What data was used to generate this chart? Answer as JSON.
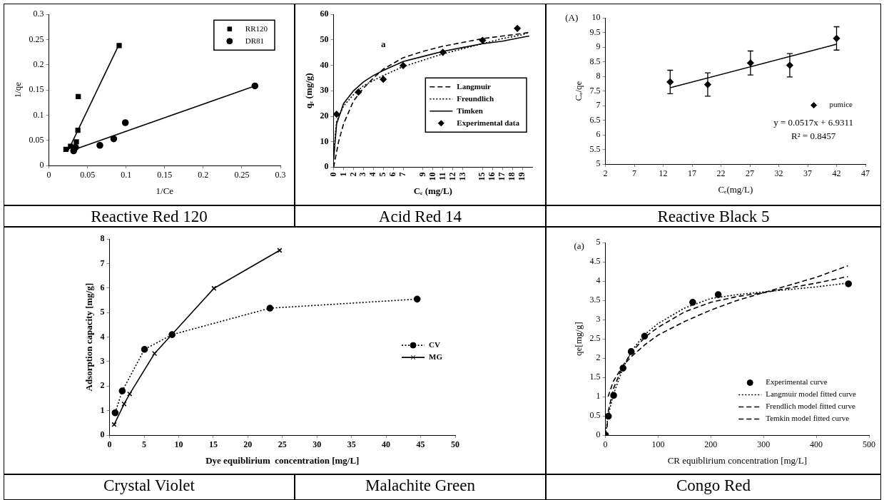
{
  "chart_data": [
    {
      "type": "scatter",
      "title": "Reactive Red 120",
      "xlabel": "1/Ce",
      "ylabel": "1/qe",
      "xlim": [
        0,
        0.3
      ],
      "ylim": [
        0,
        0.3
      ],
      "xticks": [
        0,
        0.05,
        0.1,
        0.15,
        0.2,
        0.25,
        0.3
      ],
      "yticks": [
        0,
        0.05,
        0.1,
        0.15,
        0.2,
        0.25,
        0.3
      ],
      "grid": false,
      "legend": "top right",
      "series": [
        {
          "name": "RR120",
          "color": "#000000",
          "marker": "square",
          "x": [
            0.022,
            0.028,
            0.0355,
            0.0375,
            0.038,
            0.091
          ],
          "values": [
            0.032,
            0.038,
            0.047,
            0.07,
            0.137,
            0.238
          ]
        },
        {
          "name": "DR81",
          "color": "#000000",
          "marker": "circle",
          "x": [
            0.032,
            0.0345,
            0.066,
            0.084,
            0.099,
            0.267
          ],
          "values": [
            0.029,
            0.036,
            0.04,
            0.053,
            0.085,
            0.158
          ]
        },
        {
          "type": "line",
          "color": "#000000",
          "marker": "none",
          "line_style": "solid",
          "x": [
            0.025,
            0.0895
          ],
          "values": [
            0.03,
            0.236
          ]
        },
        {
          "type": "line",
          "color": "#000000",
          "marker": "none",
          "line_style": "solid",
          "x": [
            0.032,
            0.267
          ],
          "values": [
            0.031,
            0.158
          ]
        }
      ]
    },
    {
      "type": "line",
      "title": "Acid Red 14",
      "xlabel": "Cₑ (mg/L)",
      "ylabel": "qₑ (mg/g)",
      "xlim": [
        0,
        20
      ],
      "ylim": [
        0,
        60
      ],
      "xticks": [
        0,
        1,
        2,
        3,
        4,
        5,
        6,
        7,
        9,
        10,
        11,
        12,
        13,
        15,
        16,
        17,
        18,
        19
      ],
      "yticks": [
        0,
        10,
        20,
        30,
        40,
        50,
        60
      ],
      "grid": false,
      "legend": "right",
      "annotations": [
        "a"
      ],
      "series": [
        {
          "name": "Langmuir",
          "color": "#000000",
          "marker": "none",
          "line_style": "dashed",
          "x": [
            0,
            0.5,
            1,
            2,
            3,
            4,
            5,
            7,
            9,
            11,
            13,
            15,
            17,
            19,
            19.7
          ],
          "values": [
            0,
            10,
            17,
            26,
            31,
            35,
            38.5,
            43,
            45.5,
            47.5,
            49,
            50.5,
            51.5,
            52.5,
            53
          ]
        },
        {
          "name": "Freundlich",
          "color": "#000000",
          "marker": "none",
          "line_style": "dotted",
          "x": [
            0,
            0.3,
            1,
            2,
            3,
            4,
            5,
            7,
            9,
            11,
            13,
            15,
            17,
            19,
            19.7
          ],
          "values": [
            5,
            18,
            24,
            28.5,
            32,
            34,
            36,
            39.5,
            42,
            44.5,
            46.5,
            48.5,
            50.5,
            52,
            53
          ]
        },
        {
          "name": "Timken",
          "color": "#000000",
          "marker": "none",
          "line_style": "solid",
          "x": [
            0,
            0.3,
            1,
            2,
            3,
            4,
            5,
            7,
            9,
            11,
            13,
            15,
            17,
            19,
            19.7
          ],
          "values": [
            3,
            17,
            25,
            30,
            33.5,
            36,
            38,
            41.5,
            43.5,
            45.5,
            47,
            48.5,
            49.5,
            51,
            51.5
          ]
        },
        {
          "name": "Experimental data",
          "type": "scatter",
          "color": "#000000",
          "marker": "diamond",
          "x": [
            0.3,
            2.5,
            5,
            7,
            11,
            15,
            18.5
          ],
          "values": [
            20.8,
            29.5,
            34.5,
            39.9,
            45.1,
            49.8,
            54.5
          ]
        }
      ]
    },
    {
      "type": "scatter",
      "title": "Reactive Black 5",
      "xlabel": "Cₑ(mg/L)",
      "ylabel": "Cₑ/qe",
      "xlim": [
        2,
        47
      ],
      "ylim": [
        5,
        10
      ],
      "xticks": [
        2,
        7,
        12,
        17,
        22,
        27,
        32,
        37,
        42,
        47
      ],
      "yticks": [
        5,
        5.5,
        6,
        6.5,
        7,
        7.5,
        8,
        8.5,
        9,
        9.5,
        10
      ],
      "grid": false,
      "legend": "right",
      "annotations": [
        "(A)",
        "y = 0.0517x + 6.9311",
        "R² = 0.8457"
      ],
      "series": [
        {
          "name": "pumice",
          "color": "#000000",
          "marker": "diamond",
          "x": [
            13.2,
            19.7,
            27.1,
            33.9,
            42.0
          ],
          "values": [
            7.81,
            7.72,
            8.46,
            8.38,
            9.3
          ],
          "errors": [
            0.4,
            0.4,
            0.41,
            0.4,
            0.4
          ]
        },
        {
          "type": "line",
          "color": "#000000",
          "marker": "none",
          "line_style": "solid",
          "x": [
            13.2,
            42.0
          ],
          "values": [
            7.61,
            9.1
          ]
        }
      ]
    },
    {
      "type": "line",
      "title": "Crystal Violet",
      "subtitle": "Malachite Green",
      "xlabel": "Dye equiblirium  concentration [mg/L]",
      "ylabel": "Adsorption capacity [mg/g]",
      "xlim": [
        0,
        50
      ],
      "ylim": [
        0,
        8
      ],
      "xticks": [
        0,
        5,
        10,
        15,
        20,
        25,
        30,
        35,
        40,
        45,
        50
      ],
      "yticks": [
        0,
        1,
        2,
        3,
        4,
        5,
        6,
        7,
        8
      ],
      "grid": false,
      "legend": "right",
      "series": [
        {
          "name": "CV",
          "color": "#000000",
          "marker": "circle",
          "line_style": "dotted",
          "x": [
            0.8,
            1.83,
            5.05,
            9.04,
            23.2,
            44.5
          ],
          "values": [
            0.91,
            1.8,
            3.5,
            4.1,
            5.18,
            5.55
          ]
        },
        {
          "name": "MG",
          "color": "#000000",
          "marker": "cross",
          "line_style": "solid",
          "x": [
            0.66,
            2.1,
            2.9,
            6.5,
            15.1,
            24.6
          ],
          "values": [
            0.43,
            1.27,
            1.68,
            3.33,
            5.99,
            7.54
          ]
        }
      ]
    },
    {
      "type": "scatter",
      "title": "Congo Red",
      "xlabel": "CR equiblirium concentration [mg/L]",
      "ylabel": "qe[mg/g]",
      "xlim": [
        0,
        500
      ],
      "ylim": [
        0,
        5
      ],
      "xticks": [
        0,
        100,
        200,
        300,
        400,
        500
      ],
      "yticks": [
        0,
        0.5,
        1,
        1.5,
        2,
        2.5,
        3,
        3.5,
        4,
        4.5,
        5
      ],
      "grid": false,
      "legend": "bottom right",
      "annotations": [
        "(a)"
      ],
      "series": [
        {
          "name": "Experimental curve",
          "color": "#000000",
          "marker": "circle",
          "x": [
            0,
            5.6,
            15.5,
            33.3,
            48.8,
            74.2,
            165.5,
            213.9,
            461
          ],
          "values": [
            0,
            0.49,
            1.03,
            1.74,
            2.17,
            2.57,
            3.45,
            3.65,
            3.93
          ]
        },
        {
          "name": "Langmuir model fitted curve",
          "type": "line",
          "color": "#000000",
          "marker": "none",
          "line_style": "dotted",
          "x": [
            0,
            5,
            15,
            33,
            50,
            75,
            100,
            150,
            200,
            250,
            300,
            400,
            460
          ],
          "values": [
            0,
            0.5,
            1.05,
            1.73,
            2.2,
            2.62,
            2.9,
            3.3,
            3.55,
            3.65,
            3.72,
            3.85,
            3.95
          ]
        },
        {
          "name": "Frendlich model fitted curve",
          "type": "line",
          "color": "#000000",
          "marker": "none",
          "line_style": "dashed",
          "x": [
            5,
            15,
            33,
            50,
            75,
            100,
            150,
            200,
            250,
            300,
            350,
            400,
            460
          ],
          "values": [
            1.0,
            1.4,
            1.8,
            2.05,
            2.35,
            2.6,
            2.95,
            3.25,
            3.5,
            3.7,
            3.9,
            4.1,
            4.4
          ]
        },
        {
          "name": "Temkin model fitted curve",
          "type": "line",
          "color": "#000000",
          "marker": "none",
          "line_style": "dashed",
          "x": [
            3,
            5,
            15,
            33,
            50,
            75,
            100,
            150,
            200,
            250,
            300,
            400,
            460
          ],
          "values": [
            0.2,
            0.6,
            1.2,
            1.8,
            2.15,
            2.55,
            2.8,
            3.2,
            3.45,
            3.6,
            3.7,
            3.95,
            4.12
          ]
        }
      ]
    }
  ]
}
